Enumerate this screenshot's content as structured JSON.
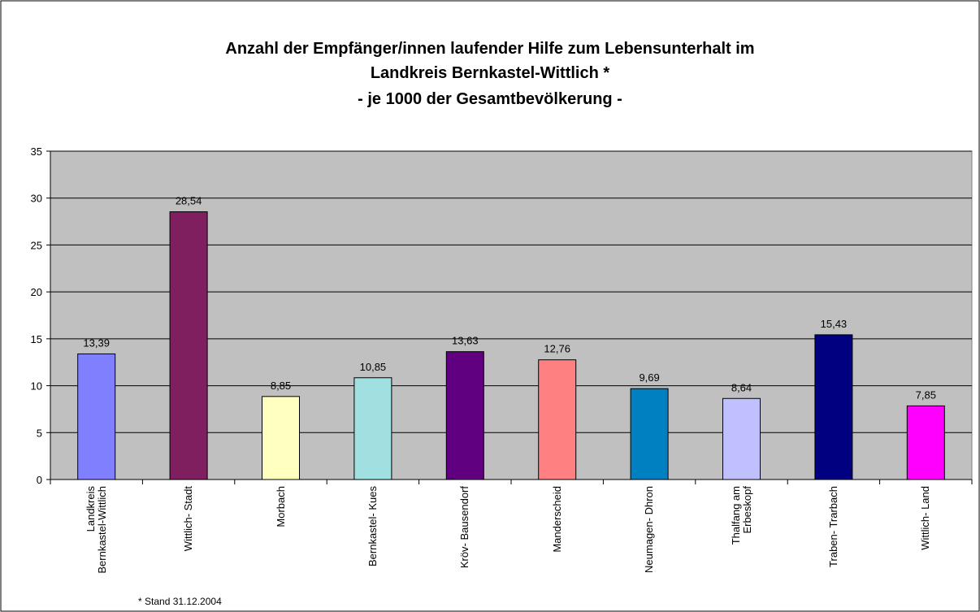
{
  "chart_data": {
    "type": "bar",
    "title": [
      "Anzahl der Empfänger/innen laufender Hilfe zum Lebensunterhalt im",
      "Landkreis Bernkastel-Wittlich *"
    ],
    "subtitle": "- je 1000 der Gesamtbevölkerung -",
    "categories": [
      "Landkreis Bernkastel-Wittlich",
      "Wittlich- Stadt",
      "Morbach",
      "Bernkastel- Kues",
      "Kröv- Bausendorf",
      "Manderscheid",
      "Neumagen- Dhron",
      "Thalfang am Erbeskopf",
      "Traben- Trarbach",
      "Wittlich- Land"
    ],
    "values": [
      13.39,
      28.54,
      8.85,
      10.85,
      13.63,
      12.76,
      9.69,
      8.64,
      15.43,
      7.85
    ],
    "value_labels": [
      "13,39",
      "28,54",
      "8,85",
      "10,85",
      "13,63",
      "12,76",
      "9,69",
      "8,64",
      "15,43",
      "7,85"
    ],
    "colors": [
      "#8080ff",
      "#7f1f5f",
      "#ffffc0",
      "#a0e0e0",
      "#600080",
      "#ff8080",
      "#0080c0",
      "#c0c0ff",
      "#000080",
      "#ff00ff"
    ],
    "ylim": [
      0,
      35
    ],
    "yticks": [
      0,
      5,
      10,
      15,
      20,
      25,
      30,
      35
    ],
    "grid": true,
    "annotation": "* Stand  31.12.2004"
  }
}
